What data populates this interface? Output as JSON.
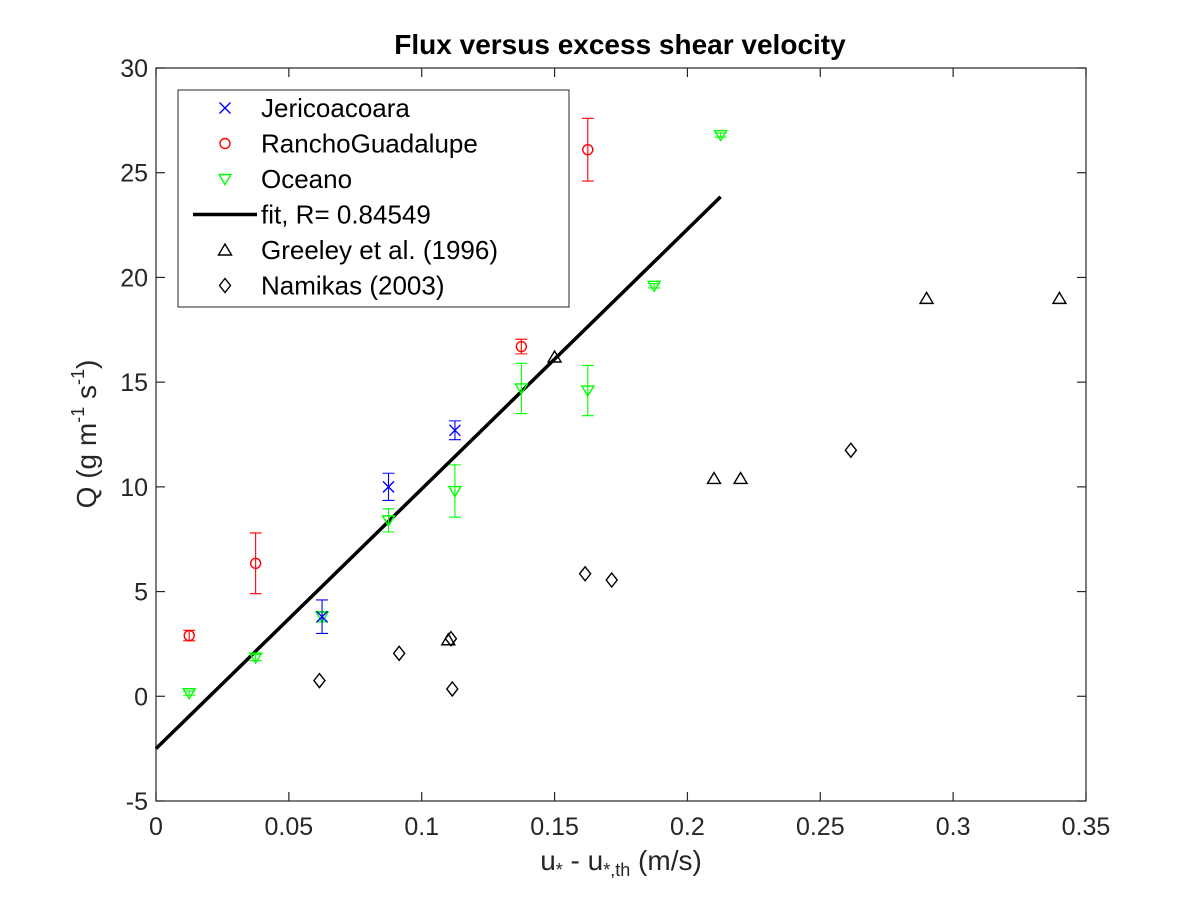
{
  "chart_data": {
    "type": "scatter",
    "title": "Flux versus excess shear velocity",
    "xlabel": {
      "main": "u",
      "sub1": "*",
      "mid": " - u",
      "sub2": "*,th",
      "tail": " (m/s)"
    },
    "ylabel": {
      "main": "Q (g m",
      "sup1": "-1",
      "mid": " s",
      "sup2": "-1",
      "tail": ")"
    },
    "xlim": [
      0,
      0.35
    ],
    "ylim": [
      -5,
      30
    ],
    "xticks": [
      0,
      0.05,
      0.1,
      0.15,
      0.2,
      0.25,
      0.3,
      0.35
    ],
    "xtick_labels": [
      "0",
      "0.05",
      "0.1",
      "0.15",
      "0.2",
      "0.25",
      "0.3",
      "0.35"
    ],
    "yticks": [
      -5,
      0,
      5,
      10,
      15,
      20,
      25,
      30
    ],
    "ytick_labels": [
      "-5",
      "0",
      "5",
      "10",
      "15",
      "20",
      "25",
      "30"
    ],
    "grid": false,
    "legend_position": "top-left",
    "series": [
      {
        "name": "Jericoacoara",
        "marker": "x",
        "color": "#0000ff",
        "points": [
          {
            "x": 0.0625,
            "y": 3.8,
            "err": 0.8
          },
          {
            "x": 0.0875,
            "y": 10.0,
            "err": 0.65
          },
          {
            "x": 0.1125,
            "y": 12.7,
            "err": 0.45
          }
        ]
      },
      {
        "name": "RanchoGuadalupe",
        "marker": "circle",
        "color": "#ff0000",
        "points": [
          {
            "x": 0.0125,
            "y": 2.9,
            "err": 0.25
          },
          {
            "x": 0.0375,
            "y": 6.35,
            "err": 1.45
          },
          {
            "x": 0.1375,
            "y": 16.7,
            "err": 0.35
          },
          {
            "x": 0.1625,
            "y": 26.1,
            "err": 1.5
          }
        ]
      },
      {
        "name": "Oceano",
        "marker": "triangle-down",
        "color": "#00ff00",
        "points": [
          {
            "x": 0.0125,
            "y": 0.15,
            "err": 0.1
          },
          {
            "x": 0.0375,
            "y": 1.85,
            "err": 0.15
          },
          {
            "x": 0.0625,
            "y": 3.8,
            "err": 0.25
          },
          {
            "x": 0.0875,
            "y": 8.4,
            "err": 0.55
          },
          {
            "x": 0.1125,
            "y": 9.8,
            "err": 1.25
          },
          {
            "x": 0.1375,
            "y": 14.7,
            "err": 1.2
          },
          {
            "x": 0.1625,
            "y": 14.6,
            "err": 1.2
          },
          {
            "x": 0.1875,
            "y": 19.6,
            "err": 0.1
          },
          {
            "x": 0.2125,
            "y": 26.8,
            "err": 0.1
          }
        ]
      },
      {
        "name": "fit, R= 0.84549",
        "marker": "line",
        "color": "#000000",
        "points": [
          {
            "x": 0,
            "y": -2.5
          },
          {
            "x": 0.2125,
            "y": 23.85
          }
        ]
      },
      {
        "name": "Greeley et al. (1996)",
        "marker": "triangle-up",
        "color": "#000000",
        "points": [
          {
            "x": 0.11,
            "y": 2.7
          },
          {
            "x": 0.15,
            "y": 16.2
          },
          {
            "x": 0.21,
            "y": 10.4
          },
          {
            "x": 0.22,
            "y": 10.4
          },
          {
            "x": 0.29,
            "y": 19.0
          },
          {
            "x": 0.34,
            "y": 19.0
          }
        ]
      },
      {
        "name": "Namikas (2003)",
        "marker": "diamond",
        "color": "#000000",
        "points": [
          {
            "x": 0.0615,
            "y": 0.75
          },
          {
            "x": 0.0915,
            "y": 2.05
          },
          {
            "x": 0.111,
            "y": 2.75
          },
          {
            "x": 0.1115,
            "y": 0.35
          },
          {
            "x": 0.1615,
            "y": 5.85
          },
          {
            "x": 0.1715,
            "y": 5.55
          },
          {
            "x": 0.2615,
            "y": 11.75
          }
        ]
      }
    ]
  }
}
